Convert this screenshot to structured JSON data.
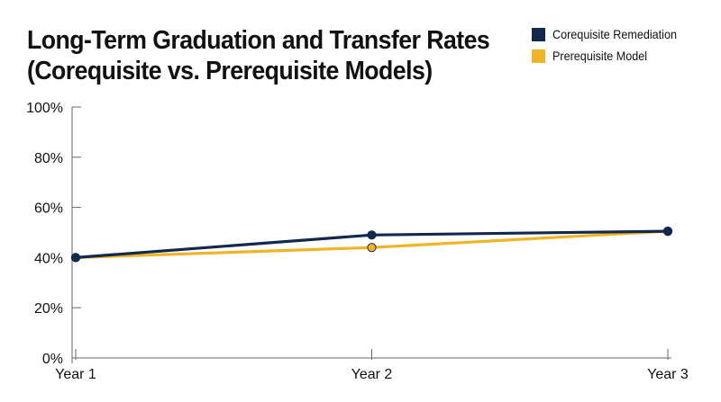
{
  "title_line1": "Long-Term Graduation and Transfer Rates",
  "title_line2": "(Corequisite vs. Prerequisite Models)",
  "colors": {
    "corequisite": "#13294b",
    "prerequisite": "#f0b429",
    "axis": "#666666"
  },
  "chart_data": {
    "type": "line",
    "x": [
      "Year 1",
      "Year 2",
      "Year 3"
    ],
    "series": [
      {
        "name": "Corequisite Remediation",
        "values": [
          40,
          49,
          50.5
        ]
      },
      {
        "name": "Prerequisite Model",
        "values": [
          40,
          44,
          50.5
        ]
      }
    ],
    "ylim": [
      0,
      100
    ],
    "yticks": [
      0,
      20,
      40,
      60,
      80,
      100
    ],
    "ytick_labels": [
      "0%",
      "20%",
      "40%",
      "60%",
      "80%",
      "100%"
    ],
    "grid": false,
    "legend_position": "top-right",
    "xlabel": "",
    "ylabel": ""
  }
}
